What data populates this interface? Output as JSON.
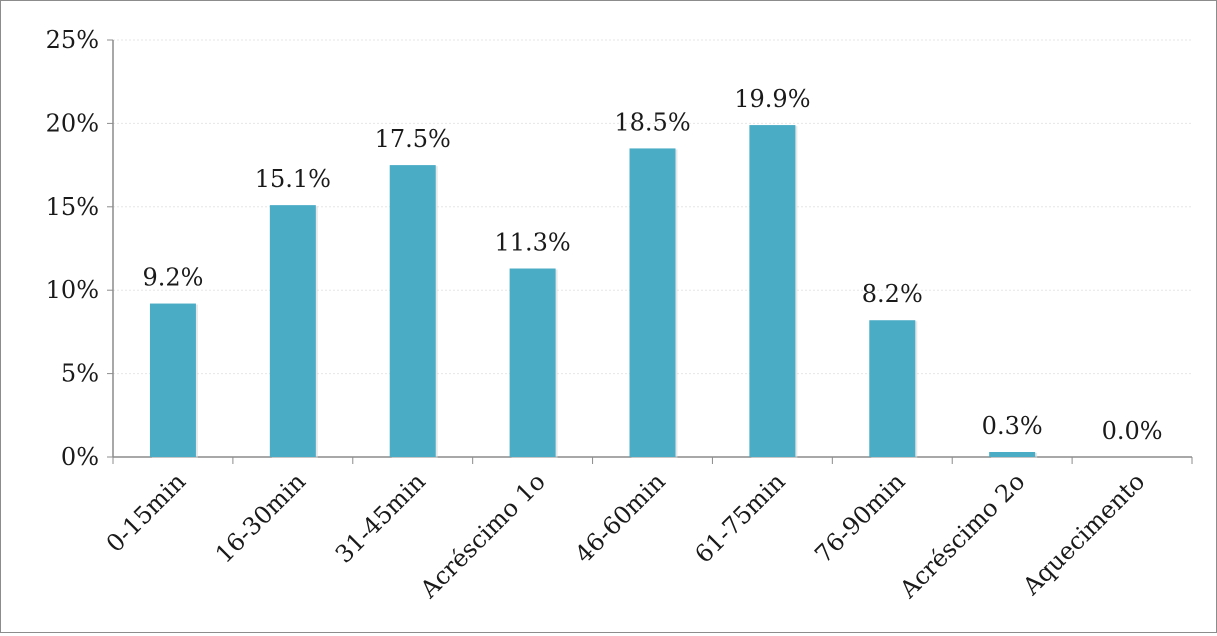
{
  "chart_data": {
    "type": "bar",
    "categories": [
      "0-15min",
      "16-30min",
      "31-45min",
      "Acréscimo 1o",
      "46-60min",
      "61-75min",
      "76-90min",
      "Acréscimo 2o",
      "Aquecimento"
    ],
    "values": [
      9.2,
      15.1,
      17.5,
      11.3,
      18.5,
      19.9,
      8.2,
      0.3,
      0.0
    ],
    "data_labels": [
      "9.2%",
      "15.1%",
      "17.5%",
      "11.3%",
      "18.5%",
      "19.9%",
      "8.2%",
      "0.3%",
      "0.0%"
    ],
    "yticks": [
      0,
      5,
      10,
      15,
      20,
      25
    ],
    "ytick_labels": [
      "0%",
      "5%",
      "10%",
      "15%",
      "20%",
      "25%"
    ],
    "ylim": [
      0,
      25
    ],
    "title": "",
    "xlabel": "",
    "ylabel": "",
    "grid": true,
    "legend": "none",
    "bar_color": "#4bacc6"
  }
}
